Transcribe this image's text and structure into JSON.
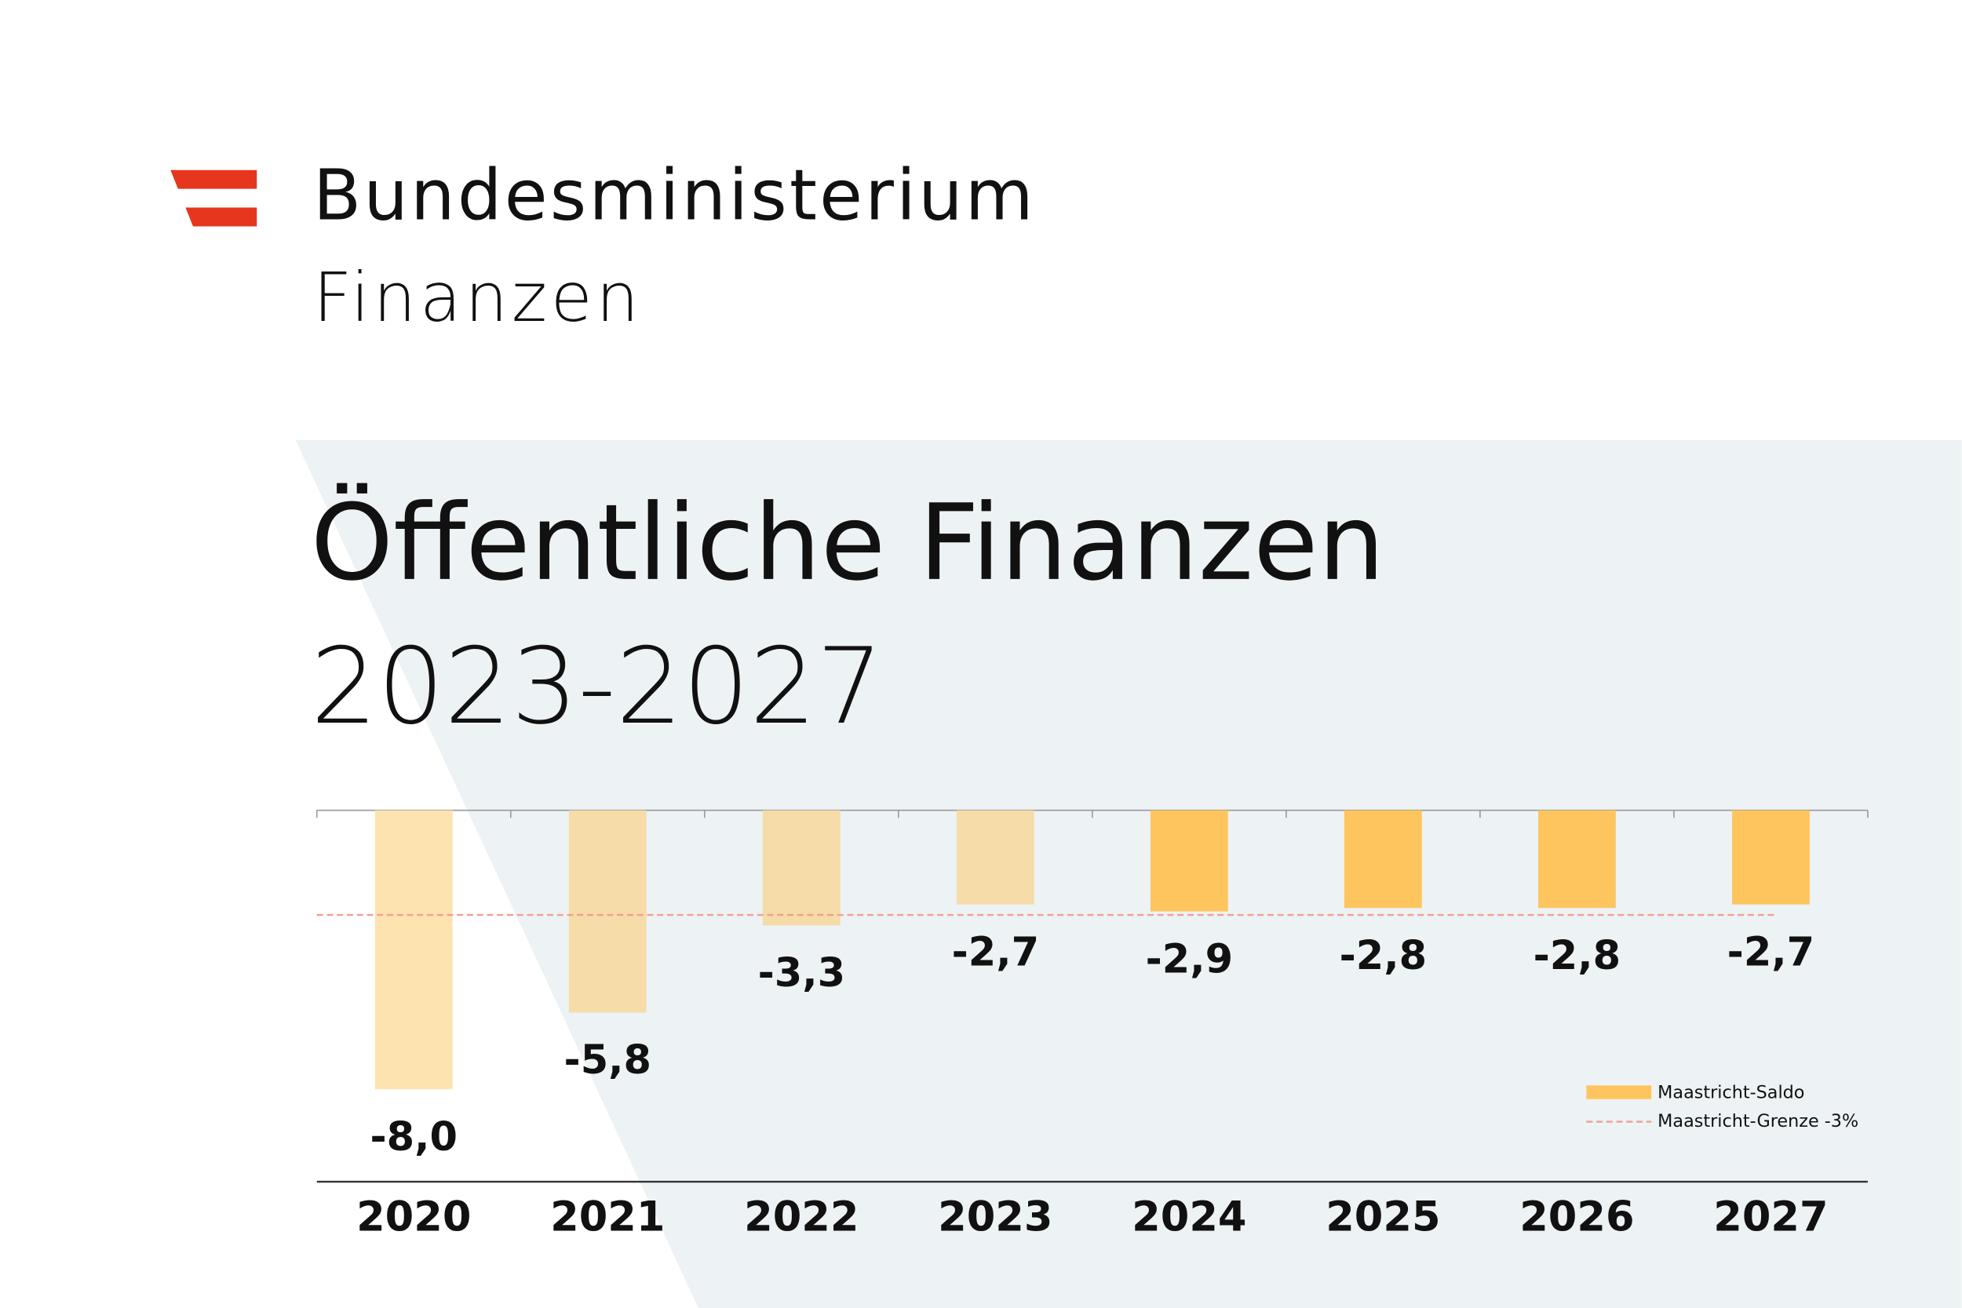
{
  "header": {
    "line1": "Bundesministerium",
    "line2": "Finanzen"
  },
  "chart_data": {
    "type": "bar",
    "title": "Öffentliche Finanzen",
    "subtitle": "2023-2027",
    "categories": [
      "2020",
      "2021",
      "2022",
      "2023",
      "2024",
      "2025",
      "2026",
      "2027"
    ],
    "values": [
      -8.0,
      -5.8,
      -3.3,
      -2.7,
      -2.9,
      -2.8,
      -2.8,
      -2.7
    ],
    "value_labels": [
      "-8,0",
      "-5,8",
      "-3,3",
      "-2,7",
      "-2,9",
      "-2,8",
      "-2,8",
      "-2,7"
    ],
    "colors": [
      "#fde3b0",
      "#f6dca8",
      "#f5dca8",
      "#f5dca8",
      "#fec55f",
      "#fec55f",
      "#fec55f",
      "#fec55f"
    ],
    "ylim": [
      -10.65,
      0
    ],
    "legend": [
      {
        "name": "Maastricht-Saldo",
        "color": "#fec55f"
      },
      {
        "name": "Maastricht-Grenze -3%",
        "color": "#f0a090",
        "value": -3
      }
    ]
  }
}
